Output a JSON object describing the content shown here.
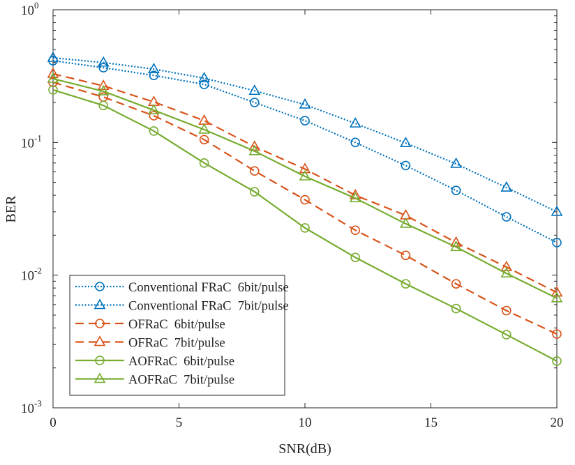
{
  "chart_data": {
    "type": "line",
    "title": "",
    "xlabel": "SNR(dB)",
    "ylabel": "BER",
    "xlim": [
      0,
      20
    ],
    "ylim": [
      0.001,
      1
    ],
    "yscale": "log",
    "grid": false,
    "legend_placement": "bottom-left",
    "x_ticks": [
      "0",
      "5",
      "10",
      "15",
      "20"
    ],
    "x_tick_values": [
      0,
      5,
      10,
      15,
      20
    ],
    "y_ticks": [
      {
        "base": "10",
        "exp": "0",
        "value": 1
      },
      {
        "base": "10",
        "exp": "-1",
        "value": 0.1
      },
      {
        "base": "10",
        "exp": "-2",
        "value": 0.01
      },
      {
        "base": "10",
        "exp": "-3",
        "value": 0.001
      }
    ],
    "x": [
      0,
      2,
      4,
      6,
      8,
      10,
      12,
      14,
      16,
      18,
      20
    ],
    "series": [
      {
        "name": "Conventional FRaC  6bit/pulse",
        "color": "#0072BD",
        "dash": "dotted",
        "marker": "circle",
        "values": [
          0.413,
          0.366,
          0.32,
          0.274,
          0.2,
          0.146,
          0.1,
          0.067,
          0.0435,
          0.0275,
          0.0176
        ]
      },
      {
        "name": "Conventional FRaC  7bit/pulse",
        "color": "#0072BD",
        "dash": "dotted",
        "marker": "triangle",
        "values": [
          0.434,
          0.4,
          0.357,
          0.305,
          0.245,
          0.193,
          0.139,
          0.099,
          0.069,
          0.0457,
          0.03
        ]
      },
      {
        "name": "OFRaC  6bit/pulse",
        "color": "#D95319",
        "dash": "dashed",
        "marker": "circle",
        "values": [
          0.284,
          0.22,
          0.159,
          0.105,
          0.061,
          0.037,
          0.0218,
          0.0141,
          0.0086,
          0.0054,
          0.0036
        ]
      },
      {
        "name": "OFRaC  7bit/pulse",
        "color": "#D95319",
        "dash": "dashed",
        "marker": "triangle",
        "values": [
          0.329,
          0.267,
          0.202,
          0.146,
          0.093,
          0.063,
          0.04,
          0.0282,
          0.0176,
          0.0115,
          0.0074
        ]
      },
      {
        "name": "AOFRaC  6bit/pulse",
        "color": "#77AC30",
        "dash": "solid",
        "marker": "circle",
        "values": [
          0.249,
          0.19,
          0.122,
          0.07,
          0.0425,
          0.0227,
          0.0136,
          0.0086,
          0.0056,
          0.00356,
          0.00225
        ]
      },
      {
        "name": "AOFRaC  7bit/pulse",
        "color": "#77AC30",
        "dash": "solid",
        "marker": "triangle",
        "values": [
          0.302,
          0.243,
          0.175,
          0.125,
          0.086,
          0.0555,
          0.038,
          0.0244,
          0.0163,
          0.0103,
          0.0067
        ]
      }
    ]
  }
}
